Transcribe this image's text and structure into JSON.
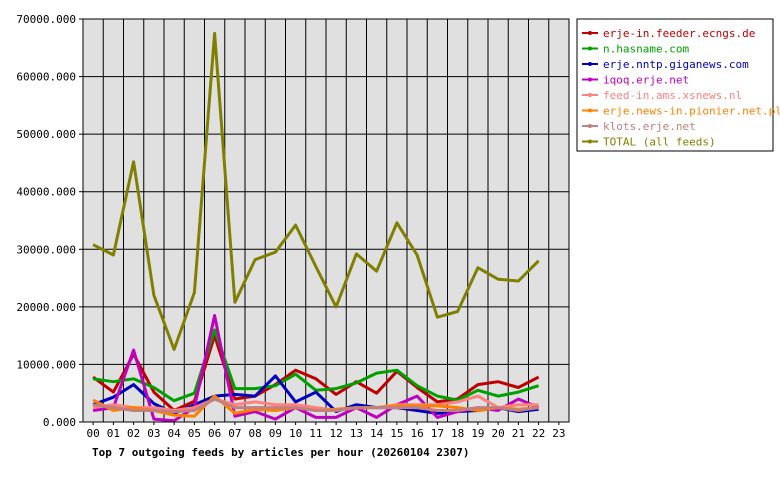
{
  "chart_data": {
    "type": "line",
    "title": "Top 7 outgoing feeds by articles per hour (20260104 2307)",
    "xlabel": "",
    "ylabel": "",
    "categories": [
      "00",
      "01",
      "02",
      "03",
      "04",
      "05",
      "06",
      "07",
      "08",
      "09",
      "10",
      "11",
      "12",
      "13",
      "14",
      "15",
      "16",
      "17",
      "18",
      "19",
      "20",
      "21",
      "22",
      "23"
    ],
    "ylim": [
      0,
      70000
    ],
    "yticks": [
      "0.000",
      "10000.000",
      "20000.000",
      "30000.000",
      "40000.000",
      "50000.000",
      "60000.000",
      "70000.000"
    ],
    "grid": true,
    "legend_position": "top-right",
    "series": [
      {
        "name": "erje-in.feeder.ecngs.de",
        "color": "#c00000",
        "values": [
          7800,
          5200,
          11800,
          5200,
          2000,
          3600,
          15000,
          4000,
          4500,
          6500,
          9000,
          7500,
          4800,
          7000,
          5000,
          8800,
          6000,
          3500,
          4000,
          6500,
          7000,
          6000,
          7800,
          null
        ]
      },
      {
        "name": "n.hasname.com",
        "color": "#00a000",
        "values": [
          7500,
          7000,
          7500,
          6000,
          3700,
          5000,
          16000,
          5800,
          5800,
          6300,
          8300,
          5500,
          5800,
          6800,
          8500,
          9000,
          6300,
          4500,
          3800,
          5500,
          4500,
          5200,
          6300,
          null
        ]
      },
      {
        "name": "erje.nntp.giganews.com",
        "color": "#0000c0",
        "values": [
          3000,
          4300,
          6500,
          3200,
          1500,
          3000,
          4500,
          4800,
          4500,
          8000,
          3500,
          5200,
          1800,
          3000,
          2500,
          2500,
          2000,
          1500,
          1800,
          2000,
          2500,
          1800,
          2200,
          null
        ]
      },
      {
        "name": "iqoq.erje.net",
        "color": "#c000c0",
        "values": [
          2000,
          2500,
          12500,
          500,
          200,
          2500,
          18500,
          1000,
          1800,
          500,
          2500,
          800,
          800,
          2500,
          800,
          3000,
          4500,
          800,
          1800,
          2500,
          2000,
          4000,
          2500,
          null
        ]
      },
      {
        "name": "feed-in.ams.xsnews.nl",
        "color": "#ff8080",
        "values": [
          2500,
          3000,
          2500,
          2500,
          2000,
          2500,
          4000,
          3000,
          3500,
          3000,
          3000,
          2500,
          2000,
          2500,
          2500,
          3000,
          3000,
          3000,
          3500,
          4500,
          2500,
          3000,
          3000,
          null
        ]
      },
      {
        "name": "erje.news-in.pionier.net.pl",
        "color": "#ff8000",
        "values": [
          3800,
          2000,
          2500,
          2000,
          1200,
          1000,
          4500,
          1500,
          2200,
          2000,
          2500,
          2000,
          2200,
          2500,
          2500,
          2800,
          2800,
          2800,
          2500,
          2000,
          2500,
          2200,
          2500,
          null
        ]
      },
      {
        "name": "klots.erje.net",
        "color": "#c08080",
        "values": [
          3000,
          2500,
          2000,
          2000,
          1800,
          2000,
          4000,
          2500,
          2500,
          2500,
          2500,
          2000,
          2000,
          2500,
          2500,
          2500,
          2500,
          2000,
          2000,
          2500,
          2500,
          2000,
          2500,
          null
        ]
      },
      {
        "name": "TOTAL (all feeds)",
        "color": "#808000",
        "values": [
          30800,
          29000,
          45200,
          22000,
          12600,
          22500,
          67500,
          20800,
          28200,
          29500,
          34200,
          27000,
          20000,
          29200,
          26200,
          34600,
          29000,
          18200,
          19200,
          26800,
          24800,
          24500,
          28000,
          null
        ]
      }
    ]
  }
}
